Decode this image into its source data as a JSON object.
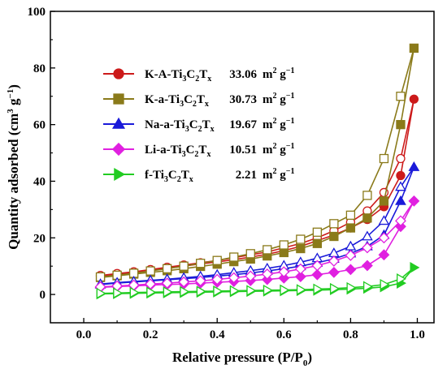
{
  "chart_data": {
    "type": "scatter",
    "xlabel": "Relative pressure (P/P",
    "xlabel_sub": "0",
    "xlabel_close": ")",
    "ylabel": "Quantity adsorbed (cm",
    "ylabel_sup": "3",
    "ylabel_mid": " g",
    "ylabel_sup2": "−1",
    "ylabel_close": ")",
    "xlim": [
      -0.1,
      1.05
    ],
    "ylim": [
      -10,
      100
    ],
    "x_ticks": [
      "0.0",
      "0.2",
      "0.4",
      "0.6",
      "0.8",
      "1.0"
    ],
    "x_tick_values": [
      0.0,
      0.2,
      0.4,
      0.6,
      0.8,
      1.0
    ],
    "y_ticks": [
      "0",
      "20",
      "40",
      "60",
      "80",
      "100"
    ],
    "y_tick_values": [
      0,
      20,
      40,
      60,
      80,
      100
    ],
    "grid": false,
    "legend_placement": "top-left",
    "series": [
      {
        "legend": {
          "prefix": "K-A-Ti",
          "sub1": "3",
          "mid1": "C",
          "sub2": "2",
          "mid2": "T",
          "sub3": "x"
        },
        "area_value": "33.06",
        "area_unit": "m",
        "area_sup": "2",
        "area_mid": " g",
        "area_sup2": "−1",
        "color": "#cc1a1a",
        "marker": "circle",
        "adsorption": [
          [
            0.05,
            6.5
          ],
          [
            0.1,
            7.2
          ],
          [
            0.15,
            7.8
          ],
          [
            0.2,
            8.5
          ],
          [
            0.25,
            9.2
          ],
          [
            0.3,
            10.0
          ],
          [
            0.35,
            10.8
          ],
          [
            0.4,
            11.5
          ],
          [
            0.45,
            12.3
          ],
          [
            0.5,
            13.2
          ],
          [
            0.55,
            14.2
          ],
          [
            0.6,
            15.5
          ],
          [
            0.65,
            17.0
          ],
          [
            0.7,
            19.0
          ],
          [
            0.75,
            21.0
          ],
          [
            0.8,
            23.5
          ],
          [
            0.85,
            26.5
          ],
          [
            0.9,
            31.0
          ],
          [
            0.95,
            42.0
          ],
          [
            0.99,
            69.0
          ]
        ],
        "desorption": [
          [
            0.99,
            69.0
          ],
          [
            0.95,
            48.0
          ],
          [
            0.9,
            36.0
          ],
          [
            0.85,
            29.5
          ],
          [
            0.8,
            25.5
          ],
          [
            0.75,
            22.5
          ],
          [
            0.7,
            20.0
          ],
          [
            0.65,
            18.0
          ],
          [
            0.6,
            16.5
          ],
          [
            0.55,
            15.0
          ],
          [
            0.5,
            14.0
          ],
          [
            0.45,
            13.0
          ],
          [
            0.4,
            12.0
          ],
          [
            0.35,
            11.2
          ],
          [
            0.3,
            10.4
          ],
          [
            0.25,
            9.6
          ],
          [
            0.2,
            8.8
          ],
          [
            0.15,
            8.0
          ],
          [
            0.1,
            7.4
          ],
          [
            0.05,
            6.7
          ]
        ]
      },
      {
        "legend": {
          "prefix": "K-a-Ti",
          "sub1": "3",
          "mid1": "C",
          "sub2": "2",
          "mid2": "T",
          "sub3": "x"
        },
        "area_value": "30.73",
        "area_unit": "m",
        "area_sup": "2",
        "area_mid": " g",
        "area_sup2": "−1",
        "color": "#8a7a1a",
        "marker": "square",
        "adsorption": [
          [
            0.05,
            6.0
          ],
          [
            0.1,
            6.6
          ],
          [
            0.15,
            7.2
          ],
          [
            0.2,
            7.8
          ],
          [
            0.25,
            8.4
          ],
          [
            0.3,
            9.1
          ],
          [
            0.35,
            9.9
          ],
          [
            0.4,
            10.7
          ],
          [
            0.45,
            11.6
          ],
          [
            0.5,
            12.5
          ],
          [
            0.55,
            13.6
          ],
          [
            0.6,
            14.8
          ],
          [
            0.65,
            16.2
          ],
          [
            0.7,
            18.0
          ],
          [
            0.75,
            20.5
          ],
          [
            0.8,
            23.5
          ],
          [
            0.85,
            27.0
          ],
          [
            0.9,
            33.0
          ],
          [
            0.95,
            60.0
          ],
          [
            0.99,
            87.0
          ]
        ],
        "desorption": [
          [
            0.99,
            87.0
          ],
          [
            0.95,
            70.0
          ],
          [
            0.9,
            48.0
          ],
          [
            0.85,
            35.0
          ],
          [
            0.8,
            28.0
          ],
          [
            0.75,
            25.0
          ],
          [
            0.7,
            22.0
          ],
          [
            0.65,
            19.5
          ],
          [
            0.6,
            17.5
          ],
          [
            0.55,
            15.8
          ],
          [
            0.5,
            14.4
          ],
          [
            0.45,
            13.2
          ],
          [
            0.4,
            12.0
          ],
          [
            0.35,
            11.0
          ],
          [
            0.3,
            10.0
          ],
          [
            0.25,
            9.1
          ],
          [
            0.2,
            8.3
          ],
          [
            0.15,
            7.5
          ],
          [
            0.1,
            6.8
          ],
          [
            0.05,
            6.2
          ]
        ]
      },
      {
        "legend": {
          "prefix": "Na-a-Ti",
          "sub1": "3",
          "mid1": "C",
          "sub2": "2",
          "mid2": "T",
          "sub3": "x"
        },
        "area_value": "19.67",
        "area_unit": "m",
        "area_sup": "2",
        "area_mid": " g",
        "area_sup2": "−1",
        "color": "#1a1ad9",
        "marker": "triangle",
        "adsorption": [
          [
            0.05,
            3.5
          ],
          [
            0.1,
            4.0
          ],
          [
            0.15,
            4.4
          ],
          [
            0.2,
            4.8
          ],
          [
            0.25,
            5.2
          ],
          [
            0.3,
            5.6
          ],
          [
            0.35,
            6.0
          ],
          [
            0.4,
            6.5
          ],
          [
            0.45,
            7.0
          ],
          [
            0.5,
            7.6
          ],
          [
            0.55,
            8.3
          ],
          [
            0.6,
            9.1
          ],
          [
            0.65,
            10.0
          ],
          [
            0.7,
            11.2
          ],
          [
            0.75,
            12.6
          ],
          [
            0.8,
            14.5
          ],
          [
            0.85,
            17.0
          ],
          [
            0.9,
            21.0
          ],
          [
            0.95,
            33.0
          ],
          [
            0.99,
            45.0
          ]
        ],
        "desorption": [
          [
            0.99,
            45.0
          ],
          [
            0.95,
            38.0
          ],
          [
            0.9,
            26.0
          ],
          [
            0.85,
            20.5
          ],
          [
            0.8,
            17.0
          ],
          [
            0.75,
            14.6
          ],
          [
            0.7,
            12.8
          ],
          [
            0.65,
            11.4
          ],
          [
            0.6,
            10.2
          ],
          [
            0.55,
            9.2
          ],
          [
            0.5,
            8.4
          ],
          [
            0.45,
            7.7
          ],
          [
            0.4,
            7.0
          ],
          [
            0.35,
            6.4
          ],
          [
            0.3,
            5.9
          ],
          [
            0.25,
            5.4
          ],
          [
            0.2,
            5.0
          ],
          [
            0.15,
            4.6
          ],
          [
            0.1,
            4.2
          ],
          [
            0.05,
            3.7
          ]
        ]
      },
      {
        "legend": {
          "prefix": "Li-a-Ti",
          "sub1": "3",
          "mid1": "C",
          "sub2": "2",
          "mid2": "T",
          "sub3": "x"
        },
        "area_value": "10.51",
        "area_unit": "m",
        "area_sup": "2",
        "area_mid": " g",
        "area_sup2": "−1",
        "color": "#e020e0",
        "marker": "diamond",
        "adsorption": [
          [
            0.05,
            2.5
          ],
          [
            0.1,
            2.8
          ],
          [
            0.15,
            3.0
          ],
          [
            0.2,
            3.3
          ],
          [
            0.25,
            3.5
          ],
          [
            0.3,
            3.7
          ],
          [
            0.35,
            4.0
          ],
          [
            0.4,
            4.3
          ],
          [
            0.45,
            4.6
          ],
          [
            0.5,
            4.9
          ],
          [
            0.55,
            5.3
          ],
          [
            0.6,
            5.8
          ],
          [
            0.65,
            6.3
          ],
          [
            0.7,
            7.0
          ],
          [
            0.75,
            7.8
          ],
          [
            0.8,
            8.8
          ],
          [
            0.85,
            10.2
          ],
          [
            0.9,
            14.0
          ],
          [
            0.95,
            24.0
          ],
          [
            0.99,
            33.0
          ]
        ],
        "desorption": [
          [
            0.99,
            33.0
          ],
          [
            0.95,
            26.0
          ],
          [
            0.9,
            20.0
          ],
          [
            0.85,
            16.5
          ],
          [
            0.8,
            13.8
          ],
          [
            0.75,
            11.8
          ],
          [
            0.7,
            10.2
          ],
          [
            0.65,
            9.0
          ],
          [
            0.6,
            8.0
          ],
          [
            0.55,
            7.2
          ],
          [
            0.5,
            6.5
          ],
          [
            0.45,
            5.9
          ],
          [
            0.4,
            5.3
          ],
          [
            0.35,
            4.8
          ],
          [
            0.3,
            4.4
          ],
          [
            0.25,
            4.0
          ],
          [
            0.2,
            3.7
          ],
          [
            0.15,
            3.3
          ],
          [
            0.1,
            3.0
          ],
          [
            0.05,
            2.7
          ]
        ]
      },
      {
        "legend": {
          "prefix": "f-Ti",
          "sub1": "3",
          "mid1": "C",
          "sub2": "2",
          "mid2": "T",
          "sub3": "x"
        },
        "area_value": "2.21",
        "area_unit": "m",
        "area_sup": "2",
        "area_mid": " g",
        "area_sup2": "−1",
        "color": "#22cc22",
        "marker": "triangle-right",
        "adsorption": [
          [
            0.05,
            0.2
          ],
          [
            0.1,
            0.3
          ],
          [
            0.15,
            0.4
          ],
          [
            0.2,
            0.5
          ],
          [
            0.25,
            0.6
          ],
          [
            0.3,
            0.7
          ],
          [
            0.35,
            0.8
          ],
          [
            0.4,
            0.9
          ],
          [
            0.45,
            1.0
          ],
          [
            0.5,
            1.1
          ],
          [
            0.55,
            1.2
          ],
          [
            0.6,
            1.3
          ],
          [
            0.65,
            1.4
          ],
          [
            0.7,
            1.5
          ],
          [
            0.75,
            1.7
          ],
          [
            0.8,
            1.9
          ],
          [
            0.85,
            2.2
          ],
          [
            0.9,
            2.7
          ],
          [
            0.95,
            4.0
          ],
          [
            0.99,
            9.5
          ]
        ],
        "desorption": [
          [
            0.99,
            9.5
          ],
          [
            0.95,
            5.5
          ],
          [
            0.9,
            3.5
          ],
          [
            0.85,
            2.8
          ],
          [
            0.8,
            2.4
          ],
          [
            0.75,
            2.1
          ],
          [
            0.7,
            1.9
          ],
          [
            0.65,
            1.7
          ],
          [
            0.6,
            1.6
          ],
          [
            0.55,
            1.5
          ],
          [
            0.5,
            1.4
          ],
          [
            0.45,
            1.3
          ],
          [
            0.4,
            1.2
          ],
          [
            0.35,
            1.1
          ],
          [
            0.3,
            1.0
          ],
          [
            0.25,
            0.9
          ],
          [
            0.2,
            0.8
          ],
          [
            0.15,
            0.7
          ],
          [
            0.1,
            0.5
          ],
          [
            0.05,
            0.4
          ]
        ]
      }
    ]
  }
}
